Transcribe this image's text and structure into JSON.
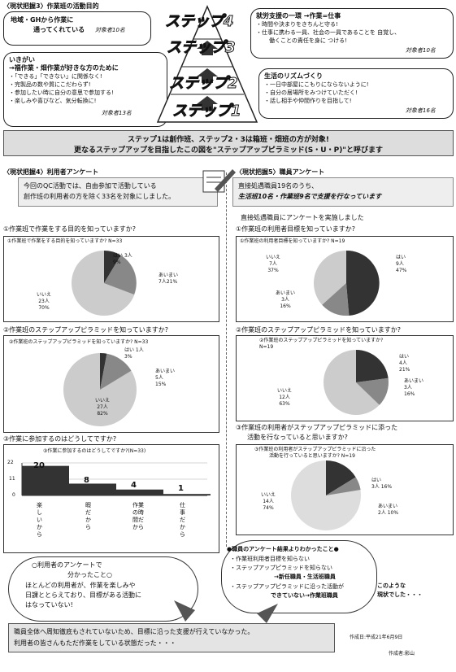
{
  "top_left_header": "〈現状把握3〉作業班の活動目的",
  "box_a": {
    "title": "地域・GHから作業に",
    "title2": "通ってくれている",
    "target": "対象者10名"
  },
  "box_b": {
    "line1": "いきがい",
    "line2": "→福作業・畑作業が好きな方のために",
    "items": [
      "・「できる」「できない」に関係なく!",
      "・完製品の数や質にこだわらず!",
      "・参加したい時に自分の意思で参加する!",
      "・楽しみや喜びなど、気分転換に!"
    ],
    "target": "対象者13名"
  },
  "box_c": {
    "title": "就労支援の一環 →作業=仕事",
    "items": [
      "・時間や決まりをきちんと守る!",
      "・仕事に携わる一員、社会の一員であることを 自覚し、",
      "働くことの責任を身に つける!"
    ],
    "target": "対象者10名"
  },
  "box_d": {
    "title": "生活のリズムづくり",
    "items": [
      "・一日中部屋にこもりにならないように!",
      "・自分の居場所をみつけていただく!",
      "・話し相手や仲間作りを目指して!"
    ],
    "target": "対象者16名"
  },
  "steps": [
    "ステップ4",
    "ステップ3",
    "ステップ2",
    "ステップ1"
  ],
  "banner": {
    "line1": "ステップ1は創作班、ステップ2・3は箱班・畑班の方が対象!",
    "line2": "更なるステップアップを目指したこの図を\"ステップアップピラミッド(S・U・P)\"と呼びます"
  },
  "left_header": "〈現状把握4〉利用者アンケート",
  "left_intro": [
    "今回のQC活動では、自由参加で活動している",
    "創作班の利用者の方を除く33名を対象にしました。"
  ],
  "right_header": "〈現状把握5〉職員アンケート",
  "right_intro": [
    "直接処遇職員19名のうち、",
    "生活班10名・作業班9名で支援を行なっています"
  ],
  "right_intro2": "直接処遇職員にアンケートを実施しました",
  "q1": {
    "heading": "①作業班で作業をする目的を知っていますか?",
    "card_title": "①作業班で作業をする目的を知っていますか? N=33",
    "labels": [
      [
        "はい",
        "3人",
        "9%"
      ],
      [
        "あいまい",
        "7人21%"
      ],
      [
        "いいえ",
        "23人",
        "70%"
      ]
    ]
  },
  "q2": {
    "heading": "②作業班のステップアップピラミッドを知っていますか?",
    "card_title": "②作業班のステップアップピラミッドを知っていますか? N=33",
    "labels": [
      [
        "はい 1人",
        "3%"
      ],
      [
        "あいまい",
        "5人",
        "15%"
      ],
      [
        "いいえ",
        "27人",
        "82%"
      ]
    ]
  },
  "q3": {
    "heading": "③作業に参加するのはどうしてですか?",
    "card_title": "③作業に参加するのはどうしてですか?(N=33)",
    "categories": [
      "楽しいから",
      "暇だから",
      "作業の時間だから",
      "仕事だから"
    ],
    "values": [
      20,
      8,
      4,
      1
    ],
    "yticks": [
      "22",
      "11",
      "0"
    ]
  },
  "rq1": {
    "heading": "①作業班の利用者目標を知っていますか?",
    "card_title": "①作業班の利用者目標を知っていますか? N=19",
    "labels": [
      [
        "いいえ",
        "7人",
        "37%"
      ],
      [
        "はい",
        "9人",
        "47%"
      ],
      [
        "あいまい",
        "3人",
        "16%"
      ]
    ]
  },
  "rq2": {
    "heading": "②作業班のステップアップピラミッドを知っていますか?",
    "card_title": "②作業班のステップアップピラミッドを知っていますか?",
    "n": "N=19",
    "labels": [
      [
        "はい",
        "4人",
        "21%"
      ],
      [
        "あいまい",
        "3人",
        "16%"
      ],
      [
        "いいえ",
        "12人",
        "63%"
      ]
    ]
  },
  "rq3": {
    "heading": [
      "③作業班の利用者がステップアップピラミッドに添った",
      "活動を行なっていると思いますか?"
    ],
    "card_title": [
      "③作業班の利用者がステップアップピラミッドに沿った",
      "活動を行っていると思いますか? N=19"
    ],
    "labels": [
      [
        "いいえ",
        "14人",
        "74%"
      ],
      [
        "はい",
        "3人 16%"
      ],
      [
        "あいまい",
        "2人 10%"
      ]
    ]
  },
  "cloud_left": {
    "title": "○利用者のアンケートで",
    "title2": "分かったこと○",
    "lines": [
      "ほとんどの利用者が、作業を楽しみや",
      "日課ととらえており、目標がある活動に",
      "はなっていない!"
    ]
  },
  "cloud_right": {
    "title": "●職員のアンケート結果よりわかったこと●",
    "lines": [
      "・作業班利用者目標を知らない",
      "・ステップアップピラミッドを知らない",
      "→新任職員・生活班職員",
      "・ステップアップピラミッドに沿った活動が",
      "できていない→作業班職員"
    ],
    "note": [
      "このような",
      "現状でした・・・"
    ]
  },
  "conclusion": [
    "職員全体へ周知徹底もされていないため、目標に沿った支援が行えていなかった。",
    "利用者の皆さんもただ作業をしている状態だった・・・"
  ],
  "date": "作成日:平成21年6月9日",
  "author": "作成者:影山"
}
